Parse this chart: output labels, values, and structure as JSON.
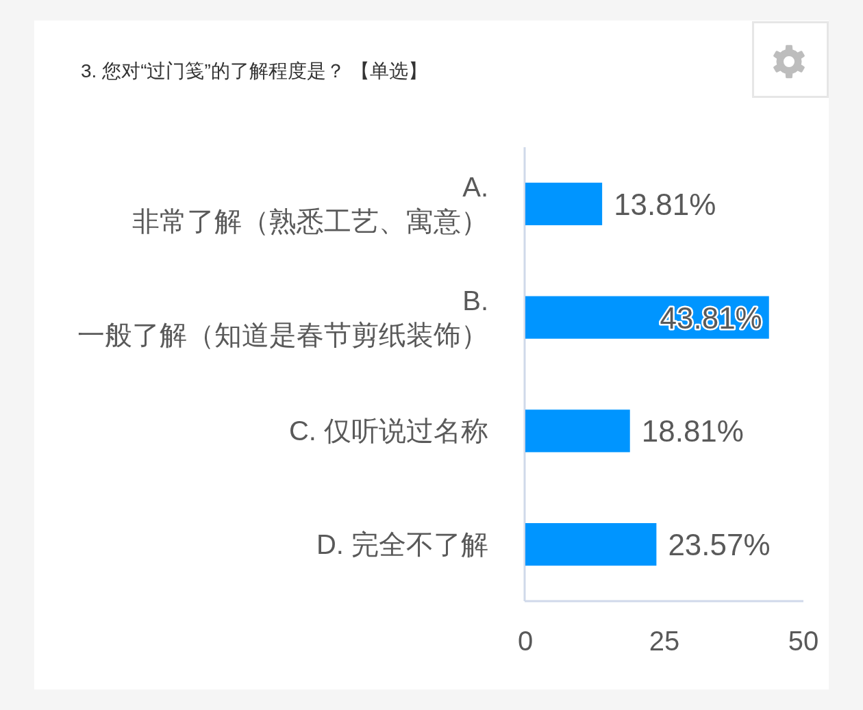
{
  "chart_data": {
    "type": "bar",
    "orientation": "horizontal",
    "title": "3. 您对“过门笺”的了解程度是？ 【单选】",
    "categories": [
      "A.\n非常了解（熟悉工艺、寓意）",
      "B.\n一般了解（知道是春节剪纸装饰）",
      "C. 仅听说过名称",
      "D. 完全不了解"
    ],
    "values": [
      13.81,
      43.81,
      18.81,
      23.57
    ],
    "value_labels": [
      "13.81%",
      "43.81%",
      "18.81%",
      "23.57%"
    ],
    "color": "#0095ff",
    "xlim": [
      0,
      50
    ],
    "xticks": [
      0,
      25,
      50
    ]
  }
}
